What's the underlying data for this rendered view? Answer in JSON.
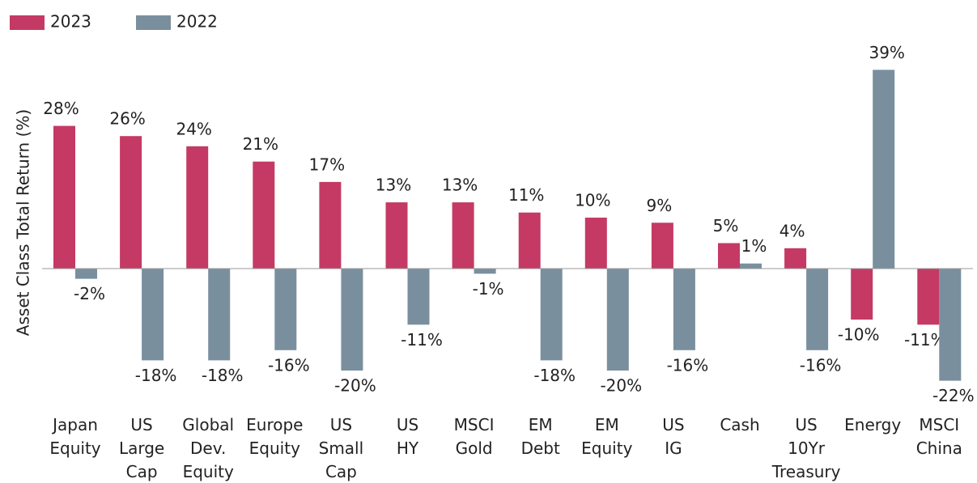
{
  "chart_data": {
    "type": "bar",
    "y_label": "Asset Class Total Return (%)",
    "categories": [
      "Japan Equity",
      "US Large Cap",
      "Global Dev. Equity",
      "Europe Equity",
      "US Small Cap",
      "US HY",
      "MSCI Gold",
      "EM Debt",
      "EM Equity",
      "US IG",
      "Cash",
      "US 10Yr Treasury",
      "Energy",
      "MSCI China"
    ],
    "series": [
      {
        "name": "2023",
        "color": "#c43a64",
        "values": [
          28,
          26,
          24,
          21,
          17,
          13,
          13,
          11,
          10,
          9,
          5,
          4,
          -10,
          -11
        ],
        "value_labels": [
          "28%",
          "26%",
          "24%",
          "21%",
          "17%",
          "13%",
          "13%",
          "11%",
          "10%",
          "9%",
          "5%",
          "4%",
          "-10%",
          "-11%"
        ]
      },
      {
        "name": "2022",
        "color": "#7a8f9e",
        "values": [
          -2,
          -18,
          -18,
          -16,
          -20,
          -11,
          -1,
          -18,
          -20,
          -16,
          1,
          -16,
          39,
          -22
        ],
        "value_labels": [
          "-2%",
          "-18%",
          "-18%",
          "-16%",
          "-20%",
          "-11%",
          "-1%",
          "-18%",
          "-20%",
          "-16%",
          "1%",
          "-16%",
          "39%",
          "-22%"
        ]
      }
    ],
    "ylim": [
      -30,
      45
    ],
    "legend": "top-left"
  }
}
